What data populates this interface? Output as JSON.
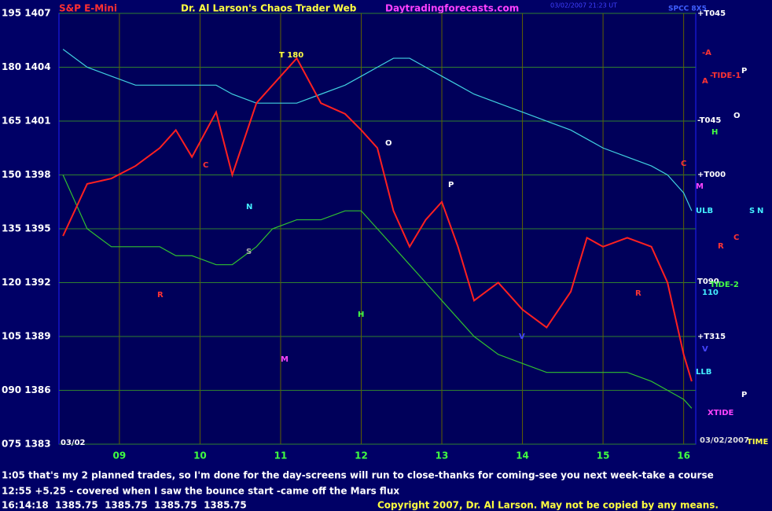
{
  "header": {
    "symbol": "S&P E-Mini",
    "title": "Dr. Al Larson's Chaos Trader Web",
    "site": "Daytradingforecasts.com",
    "stamp": "03/02/2007 21:23 UT",
    "code": "SPCC 8X5"
  },
  "chart_data": {
    "type": "line",
    "x": [
      8.3,
      8.6,
      8.9,
      9.2,
      9.5,
      9.7,
      9.9,
      10.2,
      10.4,
      10.7,
      10.9,
      11.2,
      11.5,
      11.8,
      12.0,
      12.2,
      12.4,
      12.6,
      12.8,
      13.0,
      13.2,
      13.4,
      13.7,
      14.0,
      14.3,
      14.6,
      14.8,
      15.0,
      15.3,
      15.6,
      15.8,
      16.0,
      16.1
    ],
    "series": [
      {
        "color": "#ff2020",
        "values": [
          1394.6,
          1397.5,
          1397.8,
          1398.5,
          1399.5,
          1400.5,
          1399,
          1401.5,
          1398,
          1402,
          1403,
          1404.5,
          1402,
          1401.4,
          1400.5,
          1399.5,
          1396,
          1394,
          1395.5,
          1396.5,
          1394,
          1391,
          1392,
          1390.5,
          1389.5,
          1391.5,
          1394.5,
          1394,
          1394.5,
          1394,
          1392,
          1388,
          1386.5
        ]
      },
      {
        "color": "#40d0e0",
        "values": [
          1405,
          1404,
          1403.5,
          1403,
          1403,
          1403,
          1403,
          1403,
          1402.5,
          1402,
          1402,
          1402,
          1402.5,
          1403,
          1403.5,
          1404,
          1404.5,
          1404.5,
          1404,
          1403.5,
          1403,
          1402.5,
          1402,
          1401.5,
          1401,
          1400.5,
          1400,
          1399.5,
          1399,
          1398.5,
          1398,
          1397,
          1396
        ]
      },
      {
        "color": "#30c030",
        "values": [
          1398,
          1395,
          1394,
          1394,
          1394,
          1393.5,
          1393.5,
          1393,
          1393,
          1394,
          1395,
          1395.5,
          1395.5,
          1396,
          1396,
          1395,
          1394,
          1393,
          1392,
          1391,
          1390,
          1389,
          1388,
          1387.5,
          1387,
          1387,
          1387,
          1387,
          1387,
          1386.5,
          1386,
          1385.5,
          1385
        ]
      }
    ],
    "xlim": [
      8.25,
      16.15
    ],
    "xticks": [
      {
        "value": 9,
        "label": "09"
      },
      10,
      11,
      12,
      13,
      14,
      15,
      16
    ],
    "ylim": [
      1383,
      1407
    ],
    "yticks": [
      {
        "value": 1383,
        "label": "075 1383"
      },
      {
        "value": 1386,
        "label": "090 1386"
      },
      {
        "value": 1389,
        "label": "105 1389"
      },
      {
        "value": 1392,
        "label": "120 1392"
      },
      {
        "value": 1395,
        "label": "135 1395"
      },
      {
        "value": 1398,
        "label": "150 1398"
      },
      {
        "value": 1401,
        "label": "165 1401"
      },
      {
        "value": 1404,
        "label": "180 1404"
      },
      {
        "value": 1407,
        "label": "195 1407"
      }
    ],
    "grid": true,
    "annotations": [
      "+T045",
      "-A",
      "A",
      "-TIDE-1",
      "P",
      "-T045",
      "O",
      "H",
      "+T000",
      "M",
      "ULB",
      "S",
      "N",
      "C",
      "R",
      "T090",
      "TIDE-2",
      "110",
      "+T315",
      "V",
      "LLB",
      "XTIDE",
      "P",
      "TIME",
      "03/02/2007",
      "T 180",
      "O",
      "P",
      "N",
      "S",
      "R",
      "H",
      "M",
      "C",
      "V",
      "R",
      "C",
      "03/02"
    ]
  },
  "footer": {
    "lines": [
      "1:05 that's my 2 planned trades, so I'm done for the day-screens will run to close-thanks for coming-see you next week-take a course",
      "12:55 +5.25 - covered when I saw the bounce start -came off the Mars flux",
      "16:14:18  1385.75  1385.75  1385.75  1385.75"
    ],
    "copyright": "Copyright 2007, Dr. Al Larson. May not be copied by any means."
  }
}
